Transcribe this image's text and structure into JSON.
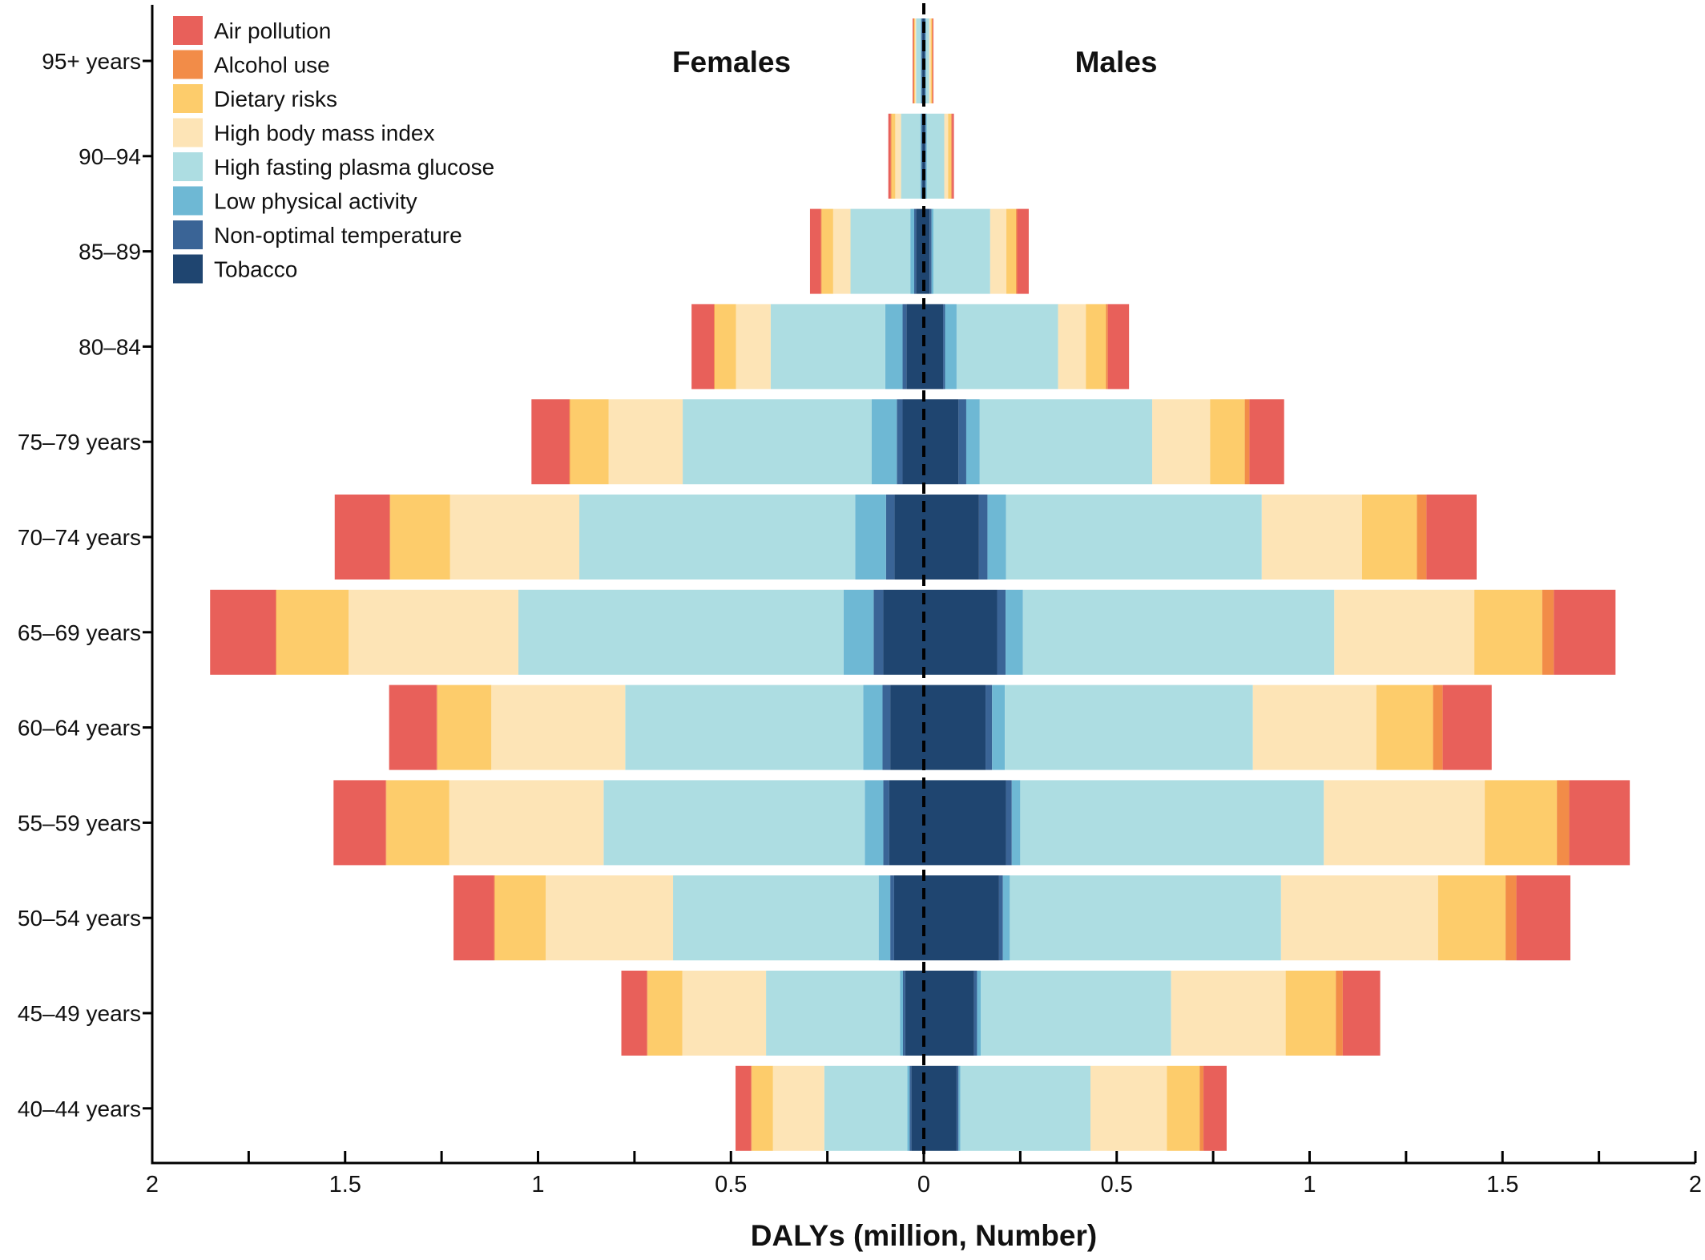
{
  "chart_data": {
    "type": "bar",
    "subtype": "diverging-stacked-bar (population pyramid)",
    "orientation": "horizontal",
    "xlabel": "DALYs (million, Number)",
    "ylabel": "",
    "xlim": [
      -2,
      2
    ],
    "x_ticks": [
      -2,
      -1.75,
      -1.5,
      -1.25,
      -1,
      -0.75,
      -0.5,
      -0.25,
      0,
      0.25,
      0.5,
      0.75,
      1,
      1.25,
      1.5,
      1.75,
      2
    ],
    "x_tick_labels": [
      {
        "value": -2,
        "label": "2"
      },
      {
        "value": -1.5,
        "label": "1.5"
      },
      {
        "value": -1,
        "label": "1"
      },
      {
        "value": -0.5,
        "label": "0.5"
      },
      {
        "value": 0,
        "label": "0"
      },
      {
        "value": 0.5,
        "label": "0.5"
      },
      {
        "value": 1,
        "label": "1"
      },
      {
        "value": 1.5,
        "label": "1.5"
      },
      {
        "value": 2,
        "label": "2"
      }
    ],
    "side_labels": {
      "left": "Females",
      "right": "Males"
    },
    "grid": false,
    "zero_line": "dashed",
    "legend_position": "top-left",
    "categories": [
      "95+ years",
      "90–94",
      "85–89",
      "80–84",
      "75–79 years",
      "70–74 years",
      "65–69 years",
      "60–64 years",
      "55–59 years",
      "50–54 years",
      "45–49 years",
      "40–44 years"
    ],
    "stack_order_from_center": [
      "Tobacco",
      "Non-optimal temperature",
      "Low physical activity",
      "High fasting plasma glucose",
      "High body mass index",
      "Dietary risks",
      "Alcohol use",
      "Air pollution"
    ],
    "series": [
      {
        "name": "Air pollution",
        "color": "#E8605A",
        "females": [
          0.002,
          0.006,
          0.028,
          0.058,
          0.098,
          0.142,
          0.17,
          0.123,
          0.135,
          0.105,
          0.066,
          0.04
        ],
        "males": [
          0.002,
          0.005,
          0.03,
          0.055,
          0.09,
          0.13,
          0.16,
          0.127,
          0.157,
          0.14,
          0.097,
          0.06
        ]
      },
      {
        "name": "Alcohol use",
        "color": "#F28C48",
        "females": [
          0.002,
          0.002,
          0.002,
          0.002,
          0.002,
          0.002,
          0.002,
          0.002,
          0.002,
          0.002,
          0.002,
          0.002
        ],
        "males": [
          0.002,
          0.002,
          0.003,
          0.005,
          0.012,
          0.025,
          0.03,
          0.025,
          0.032,
          0.028,
          0.018,
          0.01
        ]
      },
      {
        "name": "Dietary risks",
        "color": "#FDCC6B",
        "females": [
          0.002,
          0.01,
          0.03,
          0.055,
          0.1,
          0.155,
          0.187,
          0.14,
          0.163,
          0.132,
          0.09,
          0.055
        ],
        "males": [
          0.003,
          0.008,
          0.025,
          0.052,
          0.09,
          0.142,
          0.176,
          0.147,
          0.187,
          0.175,
          0.13,
          0.085
        ]
      },
      {
        "name": "High body mass index",
        "color": "#FDE4B6",
        "females": [
          0.003,
          0.015,
          0.045,
          0.09,
          0.192,
          0.335,
          0.44,
          0.347,
          0.4,
          0.33,
          0.217,
          0.133
        ],
        "males": [
          0.004,
          0.01,
          0.042,
          0.072,
          0.15,
          0.26,
          0.363,
          0.32,
          0.417,
          0.407,
          0.297,
          0.198
        ]
      },
      {
        "name": "High fasting plasma glucose",
        "color": "#ADDDE2",
        "females": [
          0.012,
          0.05,
          0.155,
          0.297,
          0.49,
          0.715,
          0.843,
          0.617,
          0.677,
          0.533,
          0.347,
          0.215
        ],
        "males": [
          0.008,
          0.045,
          0.147,
          0.263,
          0.447,
          0.663,
          0.807,
          0.643,
          0.787,
          0.703,
          0.493,
          0.337
        ]
      },
      {
        "name": "Low physical activity",
        "color": "#6EB8D4",
        "females": [
          0.002,
          0.003,
          0.01,
          0.045,
          0.065,
          0.08,
          0.078,
          0.05,
          0.048,
          0.03,
          0.008,
          0.006
        ],
        "males": [
          0.002,
          0.003,
          0.005,
          0.03,
          0.035,
          0.048,
          0.045,
          0.033,
          0.022,
          0.018,
          0.01,
          0.005
        ]
      },
      {
        "name": "Non-optimal temperature",
        "color": "#3A6496",
        "females": [
          0.002,
          0.002,
          0.005,
          0.01,
          0.015,
          0.022,
          0.025,
          0.02,
          0.015,
          0.01,
          0.006,
          0.005
        ],
        "males": [
          0.002,
          0.002,
          0.005,
          0.005,
          0.02,
          0.022,
          0.022,
          0.017,
          0.015,
          0.01,
          0.008,
          0.005
        ]
      },
      {
        "name": "Tobacco",
        "color": "#1F4570",
        "females": [
          0.004,
          0.004,
          0.02,
          0.045,
          0.055,
          0.076,
          0.105,
          0.087,
          0.09,
          0.077,
          0.048,
          0.032
        ],
        "males": [
          0.002,
          0.003,
          0.015,
          0.05,
          0.09,
          0.143,
          0.19,
          0.16,
          0.213,
          0.195,
          0.13,
          0.085
        ]
      }
    ]
  }
}
